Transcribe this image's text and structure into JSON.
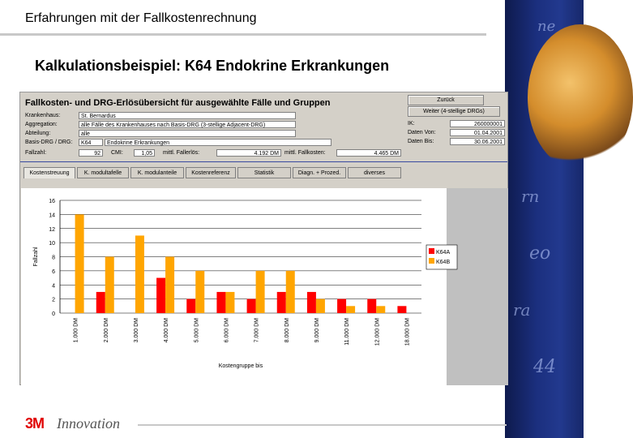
{
  "slide": {
    "title": "Erfahrungen mit der Fallkostenrechnung",
    "subtitle": "Kalkulationsbeispiel: K64 Endokrine Erkrankungen",
    "logo_text": "3M",
    "logo_word": "Innovation"
  },
  "window": {
    "title": "Fallkosten- und DRG-Erlösübersicht für ausgewählte Fälle und Gruppen",
    "buttons": {
      "back": "Zurück",
      "next": "Weiter (4-stellige DRGs)"
    },
    "fields": {
      "krankenhaus_label": "Krankenhaus:",
      "krankenhaus_value": "St. Bernardus",
      "aggregation_label": "Aggregation:",
      "aggregation_value": "alle Fälle des Krankenhauses nach Basis-DRG (3-stellige Adjacent-DRG)",
      "abteilung_label": "Abteilung:",
      "abteilung_value": "alle",
      "basisdrg_label": "Basis-DRG / DRG:",
      "basisdrg_code": "K64",
      "basisdrg_value": "Endokrine Erkrankungen",
      "ik_label": "IK:",
      "ik_value": "260000001",
      "datum_von_label": "Daten Von:",
      "datum_von_value": "01.04.2001",
      "datum_bis_label": "Daten Bis:",
      "datum_bis_value": "30.06.2001",
      "fallzahl_label": "Fallzahl:",
      "fallzahl_value": "92",
      "cmi_label": "CMI:",
      "cmi_value": "1,05",
      "mittl_fallerloes_label": "mittl. Fallerlös:",
      "mittl_fallerloes_value": "4.192 DM",
      "mittl_fallkosten_label": "mittl. Fallkosten:",
      "mittl_fallkosten_value": "4.465 DM"
    },
    "tabs": [
      "Kostenstreuung",
      "K. modultafelle",
      "K. modulanteile",
      "Kostenreferenz",
      "Statistik",
      "Diagn. + Prozed.",
      "diverses"
    ],
    "active_tab": 0
  },
  "chart_data": {
    "type": "bar",
    "categories": [
      "1.000 DM",
      "2.000 DM",
      "3.000 DM",
      "4.000 DM",
      "5.000 DM",
      "6.000 DM",
      "7.000 DM",
      "8.000 DM",
      "9.000 DM",
      "11.000 DM",
      "12.000 DM",
      "18.000 DM"
    ],
    "series": [
      {
        "name": "K64A",
        "color": "#ff0000",
        "values": [
          0,
          3,
          0,
          5,
          2,
          3,
          2,
          3,
          3,
          2,
          2,
          1
        ]
      },
      {
        "name": "K64B",
        "color": "#ffa500",
        "values": [
          14,
          8,
          11,
          8,
          6,
          3,
          6,
          6,
          2,
          1,
          1,
          0
        ]
      }
    ],
    "xlabel": "Kostengruppe bis",
    "ylabel": "Fallzahl",
    "yticks": [
      "0",
      "2",
      "4",
      "6",
      "8",
      "10",
      "12",
      "14",
      "16"
    ],
    "ylim": [
      0,
      16
    ],
    "grid": true,
    "legend_position": "right"
  }
}
